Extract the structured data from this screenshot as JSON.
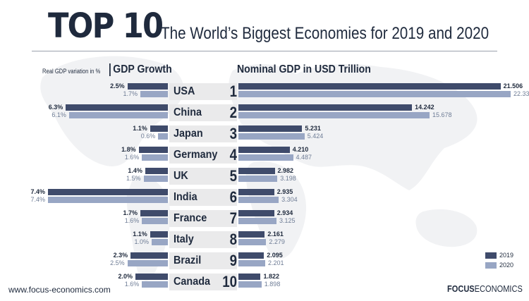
{
  "header": {
    "top_title": "TOP 10",
    "subtitle": "The World’s Biggest Economies for 2019 and 2020"
  },
  "panels": {
    "growth_note": "Real GDP variation in %",
    "growth_title": "GDP Growth",
    "nominal_title": "Nominal GDP in USD Trillion"
  },
  "colors": {
    "bar_2019": "#3f4b6b",
    "bar_2020": "#98a6c4",
    "text": "#1f2a3d"
  },
  "legend": [
    {
      "label": "2019",
      "color": "#3f4b6b"
    },
    {
      "label": "2020",
      "color": "#98a6c4"
    }
  ],
  "footer": {
    "url": "www.focus-economics.com",
    "logo_bold": "FOCUS",
    "logo_light": "ECONOMICS"
  },
  "chart_data": {
    "type": "bar",
    "categories": [
      "USA",
      "China",
      "Japan",
      "Germany",
      "UK",
      "India",
      "France",
      "Italy",
      "Brazil",
      "Canada"
    ],
    "ranks": [
      "1",
      "2",
      "3",
      "4",
      "5",
      "6",
      "7",
      "8",
      "9",
      "10"
    ],
    "gdp_growth": {
      "series": [
        {
          "name": "2019",
          "values": [
            2.5,
            6.3,
            1.1,
            1.8,
            1.4,
            7.4,
            1.7,
            1.1,
            2.3,
            2.0
          ],
          "labels": [
            "2.5%",
            "6.3%",
            "1.1%",
            "1.8%",
            "1.4%",
            "7.4%",
            "1.7%",
            "1.1%",
            "2.3%",
            "2.0%"
          ]
        },
        {
          "name": "2020",
          "values": [
            1.7,
            6.1,
            0.6,
            1.6,
            1.5,
            7.4,
            1.6,
            1.0,
            2.5,
            1.6
          ],
          "labels": [
            "1.7%",
            "6.1%",
            "0.6%",
            "1.6%",
            "1.5%",
            "7.4%",
            "1.6%",
            "1.0%",
            "2.5%",
            "1.6%"
          ]
        }
      ]
    },
    "nominal_gdp": {
      "series": [
        {
          "name": "2019",
          "values": [
            21.506,
            14.242,
            5.231,
            4.21,
            2.982,
            2.935,
            2.934,
            2.161,
            2.095,
            1.822
          ],
          "labels": [
            "21.506",
            "14.242",
            "5.231",
            "4.210",
            "2.982",
            "2.935",
            "2.934",
            "2.161",
            "2.095",
            "1.822"
          ]
        },
        {
          "name": "2020",
          "values": [
            22.336,
            15.678,
            5.424,
            4.487,
            3.198,
            3.304,
            3.125,
            2.279,
            2.201,
            1.898
          ],
          "labels": [
            "22.336",
            "15.678",
            "5.424",
            "4.487",
            "3.198",
            "3.304",
            "3.125",
            "2.279",
            "2.201",
            "1.898"
          ]
        }
      ]
    }
  }
}
